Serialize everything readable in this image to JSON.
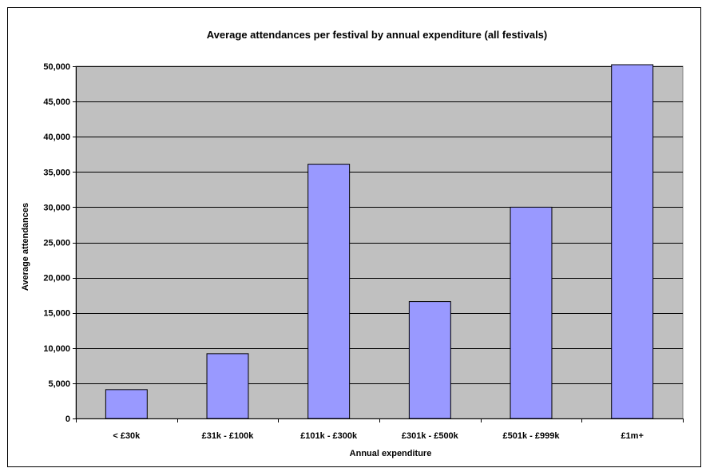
{
  "chart_data": {
    "type": "bar",
    "title": "Average attendances per festival by annual expenditure (all festivals)",
    "xlabel": "Annual expenditure",
    "ylabel": "Average attendances",
    "categories": [
      "< £30k",
      "£31k - £100k",
      "£101k - £300k",
      "£301k - £500k",
      "£501k - £999k",
      "£1m+"
    ],
    "values": [
      4100,
      9200,
      36100,
      16600,
      30000,
      50300
    ],
    "ylim": [
      0,
      50000
    ],
    "yticks": [
      0,
      5000,
      10000,
      15000,
      20000,
      25000,
      30000,
      35000,
      40000,
      45000,
      50000
    ],
    "ytick_labels": [
      "0",
      "5,000",
      "10,000",
      "15,000",
      "20,000",
      "25,000",
      "30,000",
      "35,000",
      "40,000",
      "45,000",
      "50,000"
    ],
    "grid": true,
    "colors": {
      "bar": "#9999ff",
      "plot_background": "#c0c0c0",
      "gridline": "#000000",
      "page_background": "#ffffff"
    }
  }
}
